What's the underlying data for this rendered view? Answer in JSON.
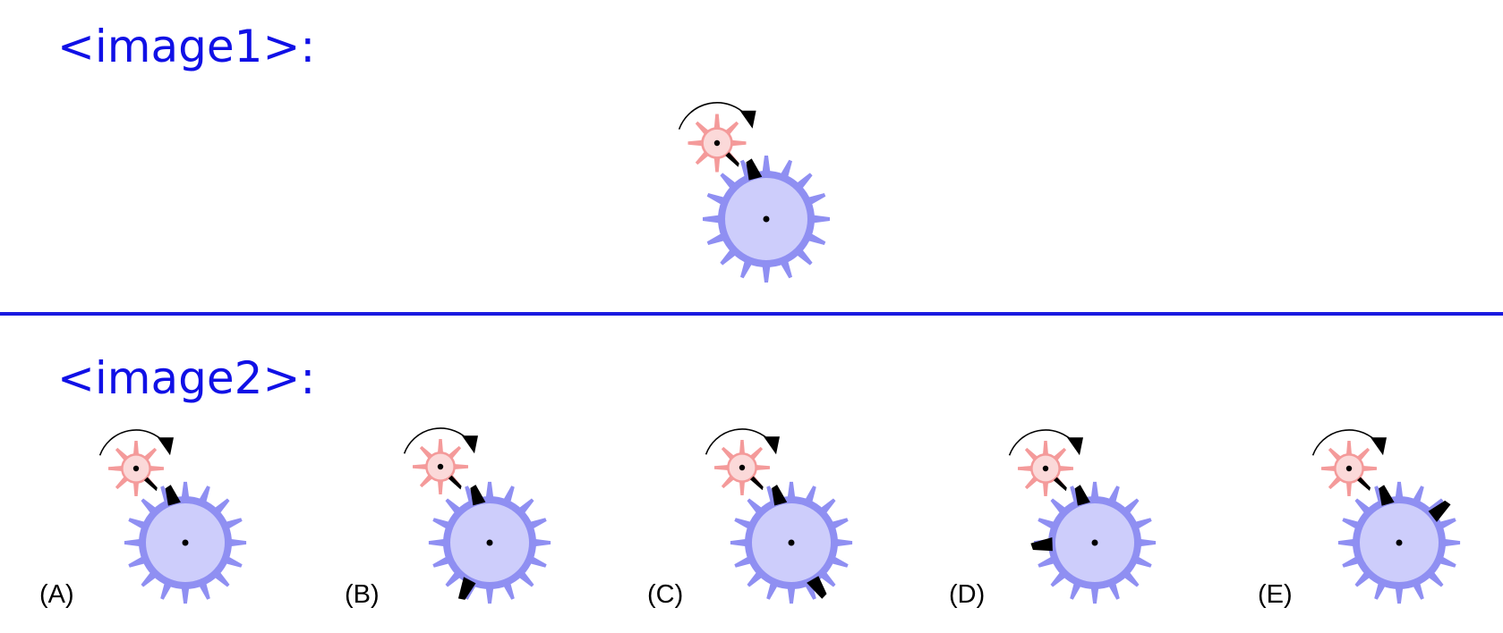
{
  "headings": {
    "image1": "<image1>:",
    "image2": "<image2>:"
  },
  "colors": {
    "heading_text": "#1010e6",
    "divider": "#1a1ae0",
    "big_gear_fill": "#cdcdfb",
    "big_gear_teeth": "#8f8ff2",
    "small_gear_teeth": "#f49a9a",
    "small_gear_hub": "#fbd9d9",
    "marker": "#000000"
  },
  "question_diagram": {
    "small_gear_rotation": "clockwise"
  },
  "options": [
    {
      "label": "(A)",
      "big_gear_marker": "none"
    },
    {
      "label": "(B)",
      "big_gear_marker": "lower-left"
    },
    {
      "label": "(C)",
      "big_gear_marker": "lower-right"
    },
    {
      "label": "(D)",
      "big_gear_marker": "left"
    },
    {
      "label": "(E)",
      "big_gear_marker": "upper-right"
    }
  ]
}
